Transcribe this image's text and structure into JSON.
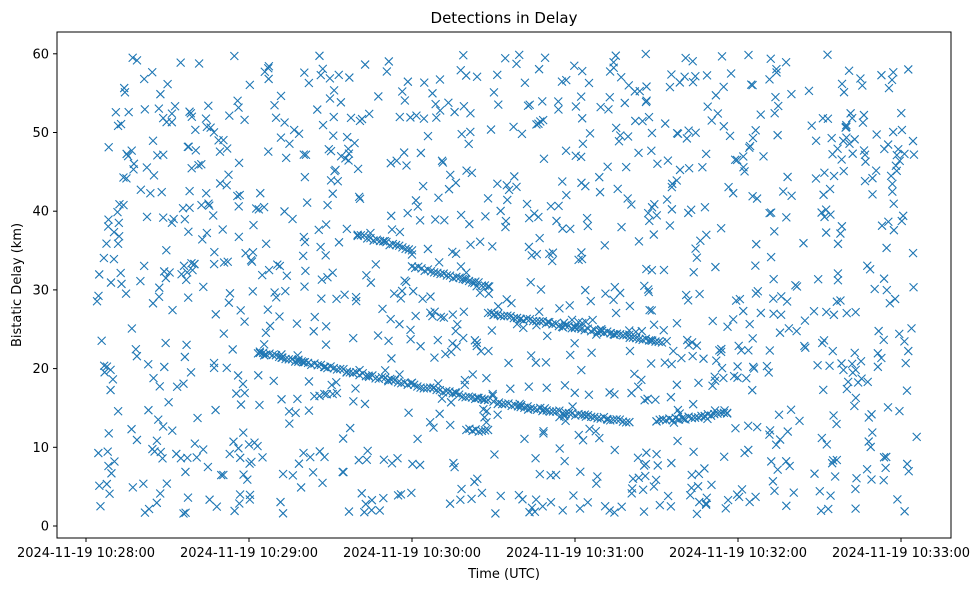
{
  "chart_data": {
    "type": "scatter",
    "title": "Detections in Delay",
    "xlabel": "Time (UTC)",
    "ylabel": "Bistatic Delay (km)",
    "x_tick_labels": [
      "2024-11-19 10:28:00",
      "2024-11-19 10:29:00",
      "2024-11-19 10:30:00",
      "2024-11-19 10:31:00",
      "2024-11-19 10:32:00",
      "2024-11-19 10:33:00"
    ],
    "y_tick_labels": [
      "0",
      "10",
      "20",
      "30",
      "40",
      "50",
      "60"
    ],
    "ylim": [
      -1.5,
      63
    ],
    "marker": "x",
    "color": "#1f77b4",
    "grid": false,
    "series": [
      {
        "values_description": "",
        "x": [
          "10:29:04",
          "10:29:12",
          "10:29:20",
          "10:29:28",
          "10:29:36",
          "10:29:44",
          "10:29:52",
          "10:30:00",
          "10:30:08",
          "10:30:16",
          "10:30:24",
          "10:30:30",
          "10:30:40",
          "10:30:48",
          "10:30:56",
          "10:31:04",
          "10:31:12",
          "10:31:20",
          "10:31:30",
          "10:31:40",
          "10:31:48",
          "10:31:56",
          "10:30:30",
          "10:30:40",
          "10:30:50",
          "10:31:00",
          "10:31:10",
          "10:31:20",
          "10:31:28",
          "10:29:40",
          "10:29:50",
          "10:30:00",
          "10:30:10",
          "10:30:20"
        ],
        "y": [
          22,
          21.4,
          20.8,
          20.2,
          19.6,
          19.1,
          18.7,
          18.2,
          17.6,
          17.0,
          16.3,
          15.8,
          15.1,
          14.6,
          14.2,
          13.9,
          13.5,
          13.2,
          13.3,
          13.6,
          13.9,
          14.3,
          26.8,
          26.3,
          25.9,
          25.3,
          24.8,
          24.3,
          23.6,
          37.0,
          36.2,
          34.5,
          33.5,
          32.2
        ]
      }
    ]
  }
}
